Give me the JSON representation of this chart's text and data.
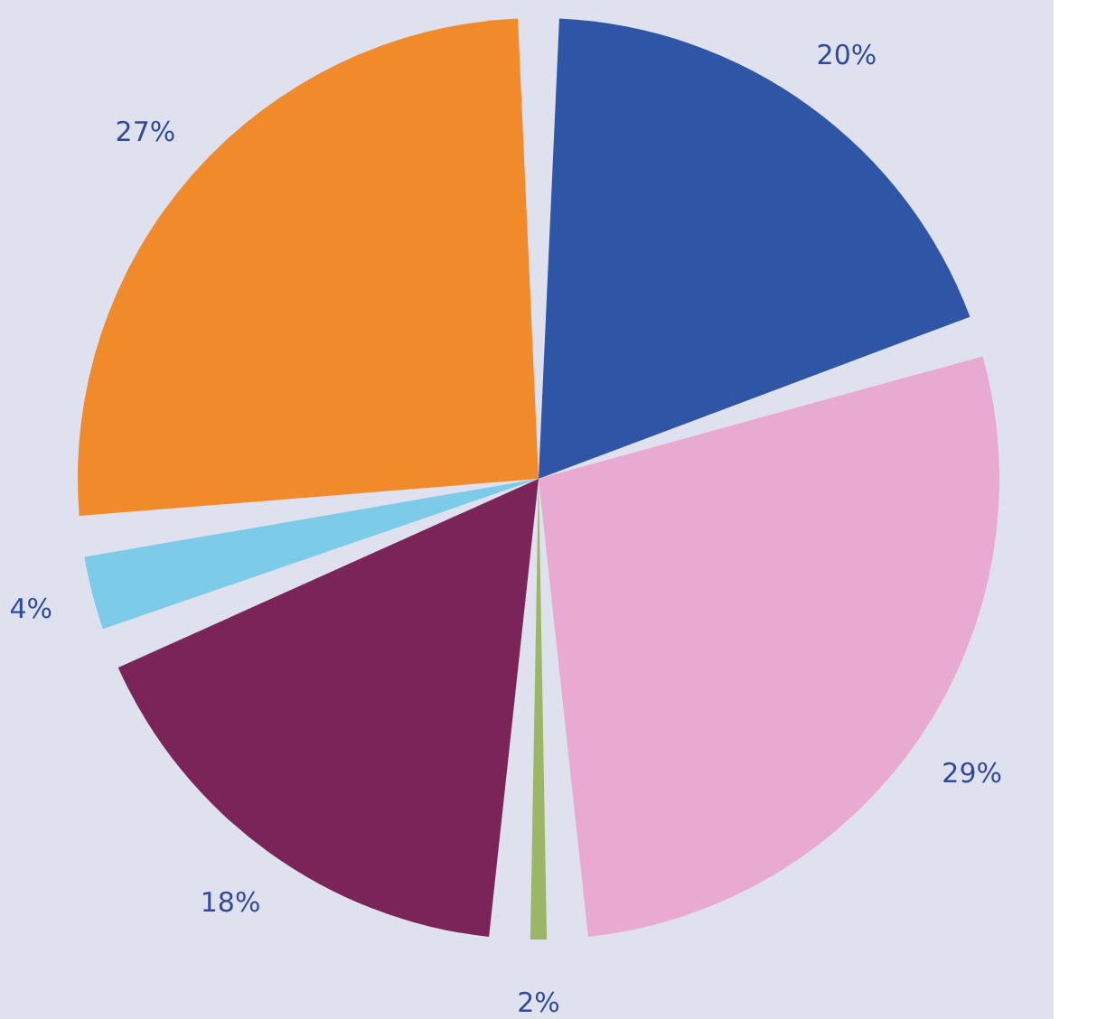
{
  "chart_data": {
    "type": "pie",
    "categories": [
      null,
      null,
      null,
      null,
      null,
      null
    ],
    "values": [
      20,
      29,
      2,
      18,
      4,
      27
    ],
    "value_labels": [
      "20%",
      "29%",
      "2%",
      "18%",
      "4%",
      "27%"
    ],
    "colors": [
      "#2f56a6",
      "#e9aad2",
      "#9bb664",
      "#7a2459",
      "#7ccbe8",
      "#f08a2b"
    ],
    "legend": false
  }
}
